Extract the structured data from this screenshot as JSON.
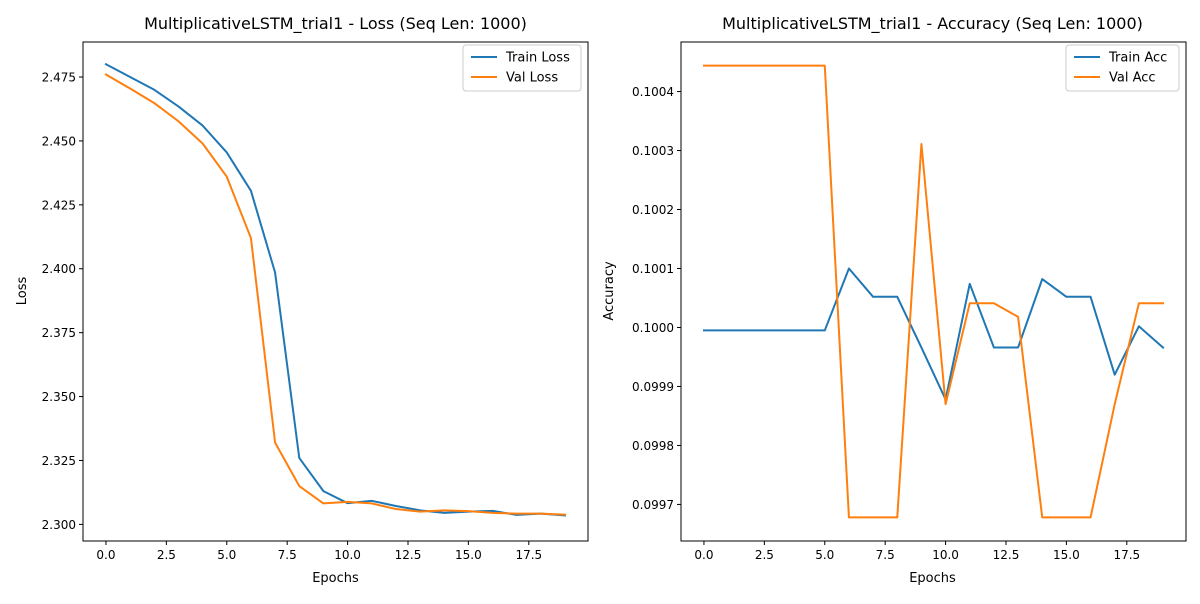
{
  "chart_data": [
    {
      "type": "line",
      "title": "MultiplicativeLSTM_trial1 - Loss (Seq Len: 1000)",
      "xlabel": "Epochs",
      "ylabel": "Loss",
      "xlim": [
        -0.95,
        19.95
      ],
      "ylim": [
        2.2935,
        2.4887
      ],
      "xticks": [
        0,
        2.5,
        5,
        7.5,
        10,
        12.5,
        15,
        17.5
      ],
      "xtick_labels": [
        "0.0",
        "2.5",
        "5.0",
        "7.5",
        "10.0",
        "12.5",
        "15.0",
        "17.5"
      ],
      "yticks": [
        2.3,
        2.325,
        2.35,
        2.375,
        2.4,
        2.425,
        2.45,
        2.475
      ],
      "ytick_labels": [
        "2.300",
        "2.325",
        "2.350",
        "2.375",
        "2.400",
        "2.425",
        "2.450",
        "2.475"
      ],
      "grid": false,
      "legend_position": "top-right",
      "x": [
        0,
        1,
        2,
        3,
        4,
        5,
        6,
        7,
        8,
        9,
        10,
        11,
        12,
        13,
        14,
        15,
        16,
        17,
        18,
        19
      ],
      "series": [
        {
          "name": "Train Loss",
          "color": "#1f77b4",
          "values": [
            2.48,
            2.475,
            2.47,
            2.4635,
            2.456,
            2.4455,
            2.4305,
            2.3985,
            2.326,
            2.313,
            2.3083,
            2.3092,
            2.3072,
            2.3055,
            2.3045,
            2.305,
            2.3053,
            2.3037,
            2.3042,
            2.3035
          ]
        },
        {
          "name": "Val Loss",
          "color": "#ff7f0e",
          "values": [
            2.476,
            2.4705,
            2.4648,
            2.4577,
            2.449,
            2.436,
            2.412,
            2.332,
            2.315,
            2.3082,
            2.3088,
            2.3082,
            2.306,
            2.305,
            2.3055,
            2.3052,
            2.3045,
            2.3042,
            2.3042,
            2.3038
          ]
        }
      ]
    },
    {
      "type": "line",
      "title": "MultiplicativeLSTM_trial1 - Accuracy (Seq Len: 1000)",
      "xlabel": "Epochs",
      "ylabel": "Accuracy",
      "xlim": [
        -0.95,
        19.95
      ],
      "ylim": [
        0.099638,
        0.100484
      ],
      "xticks": [
        0,
        2.5,
        5,
        7.5,
        10,
        12.5,
        15,
        17.5
      ],
      "xtick_labels": [
        "0.0",
        "2.5",
        "5.0",
        "7.5",
        "10.0",
        "12.5",
        "15.0",
        "17.5"
      ],
      "yticks": [
        0.0997,
        0.0998,
        0.0999,
        0.1,
        0.1001,
        0.1002,
        0.1003,
        0.1004
      ],
      "ytick_labels": [
        "0.0997",
        "0.0998",
        "0.0999",
        "0.1000",
        "0.1001",
        "0.1002",
        "0.1003",
        "0.1004"
      ],
      "grid": false,
      "legend_position": "top-right",
      "x": [
        0,
        1,
        2,
        3,
        4,
        5,
        6,
        7,
        8,
        9,
        10,
        11,
        12,
        13,
        14,
        15,
        16,
        17,
        18,
        19
      ],
      "series": [
        {
          "name": "Train Acc",
          "color": "#1f77b4",
          "values": [
            0.099995,
            0.099995,
            0.099995,
            0.099995,
            0.099995,
            0.099995,
            0.1001,
            0.100052,
            0.100052,
            0.099966,
            0.099878,
            0.100074,
            0.099966,
            0.099966,
            0.100082,
            0.100052,
            0.100052,
            0.09992,
            0.100002,
            0.099966
          ]
        },
        {
          "name": "Val Acc",
          "color": "#ff7f0e",
          "values": [
            0.100444,
            0.100444,
            0.100444,
            0.100444,
            0.100444,
            0.100444,
            0.099678,
            0.099678,
            0.099678,
            0.100311,
            0.09987,
            0.100041,
            0.100041,
            0.100018,
            0.099678,
            0.099678,
            0.099678,
            0.09987,
            0.100041,
            0.100041
          ]
        }
      ]
    }
  ]
}
